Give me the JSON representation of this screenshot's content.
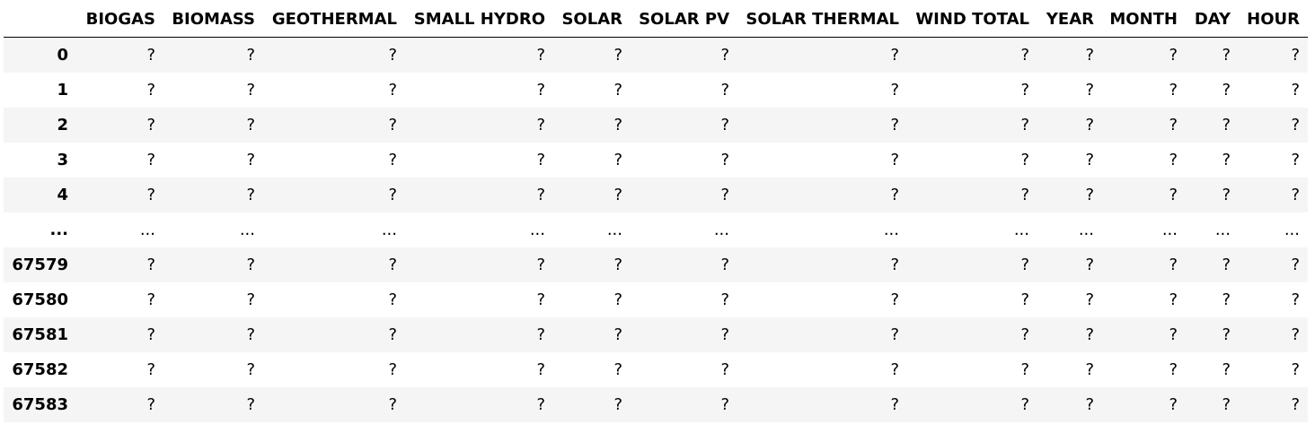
{
  "table": {
    "columns": [
      "BIOGAS",
      "BIOMASS",
      "GEOTHERMAL",
      "SMALL HYDRO",
      "SOLAR",
      "SOLAR PV",
      "SOLAR THERMAL",
      "WIND TOTAL",
      "YEAR",
      "MONTH",
      "DAY",
      "HOUR"
    ],
    "rows": [
      {
        "index": "0",
        "cells": [
          "?",
          "?",
          "?",
          "?",
          "?",
          "?",
          "?",
          "?",
          "?",
          "?",
          "?",
          "?"
        ]
      },
      {
        "index": "1",
        "cells": [
          "?",
          "?",
          "?",
          "?",
          "?",
          "?",
          "?",
          "?",
          "?",
          "?",
          "?",
          "?"
        ]
      },
      {
        "index": "2",
        "cells": [
          "?",
          "?",
          "?",
          "?",
          "?",
          "?",
          "?",
          "?",
          "?",
          "?",
          "?",
          "?"
        ]
      },
      {
        "index": "3",
        "cells": [
          "?",
          "?",
          "?",
          "?",
          "?",
          "?",
          "?",
          "?",
          "?",
          "?",
          "?",
          "?"
        ]
      },
      {
        "index": "4",
        "cells": [
          "?",
          "?",
          "?",
          "?",
          "?",
          "?",
          "?",
          "?",
          "?",
          "?",
          "?",
          "?"
        ]
      },
      {
        "index": "...",
        "cells": [
          "...",
          "...",
          "...",
          "...",
          "...",
          "...",
          "...",
          "...",
          "...",
          "...",
          "...",
          "..."
        ]
      },
      {
        "index": "67579",
        "cells": [
          "?",
          "?",
          "?",
          "?",
          "?",
          "?",
          "?",
          "?",
          "?",
          "?",
          "?",
          "?"
        ]
      },
      {
        "index": "67580",
        "cells": [
          "?",
          "?",
          "?",
          "?",
          "?",
          "?",
          "?",
          "?",
          "?",
          "?",
          "?",
          "?"
        ]
      },
      {
        "index": "67581",
        "cells": [
          "?",
          "?",
          "?",
          "?",
          "?",
          "?",
          "?",
          "?",
          "?",
          "?",
          "?",
          "?"
        ]
      },
      {
        "index": "67582",
        "cells": [
          "?",
          "?",
          "?",
          "?",
          "?",
          "?",
          "?",
          "?",
          "?",
          "?",
          "?",
          "?"
        ]
      },
      {
        "index": "67583",
        "cells": [
          "?",
          "?",
          "?",
          "?",
          "?",
          "?",
          "?",
          "?",
          "?",
          "?",
          "?",
          "?"
        ]
      }
    ]
  },
  "colors": {
    "stripe": "#f5f5f5",
    "background": "#ffffff",
    "header_rule": "#000000",
    "text": "#000000"
  }
}
